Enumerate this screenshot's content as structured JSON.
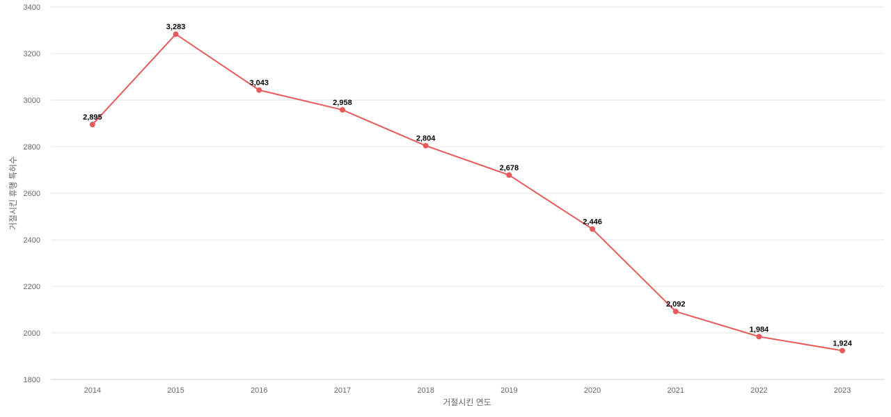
{
  "chart_data": {
    "type": "line",
    "title": "",
    "xlabel": "거절시킨 연도",
    "ylabel": "거절시킨 휴행 특허수",
    "categories": [
      "2014",
      "2015",
      "2016",
      "2017",
      "2018",
      "2019",
      "2020",
      "2021",
      "2022",
      "2023"
    ],
    "series": [
      {
        "values": [
          2895,
          3283,
          3043,
          2958,
          2804,
          2678,
          2446,
          2092,
          1984,
          1924
        ],
        "labels": [
          "2,895",
          "3,283",
          "3,043",
          "2,958",
          "2,804",
          "2,678",
          "2,446",
          "2,092",
          "1,984",
          "1,924"
        ],
        "color": "#e85a5a"
      }
    ],
    "ylim": [
      1800,
      3400
    ],
    "yticks": [
      "1800",
      "2000",
      "2200",
      "2400",
      "2600",
      "2800",
      "3000",
      "3200",
      "3400"
    ],
    "grid": true,
    "legend": "none"
  }
}
